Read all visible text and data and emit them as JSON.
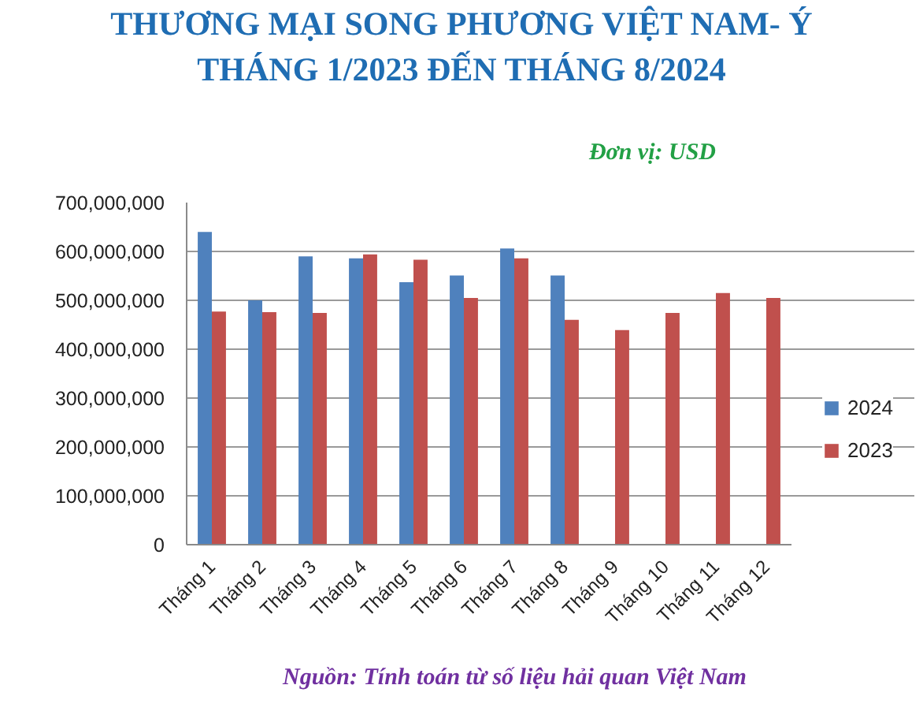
{
  "chart_data": {
    "type": "bar",
    "title": "THƯƠNG MẠI SONG PHƯƠNG VIỆT NAM- Ý",
    "subtitle": "THÁNG 1/2023 ĐẾN THÁNG 8/2024",
    "annotations": [
      "Đơn vị: USD",
      "Nguồn: Tính toán từ số liệu hải quan Việt Nam"
    ],
    "categories": [
      "Tháng 1",
      "Tháng 2",
      "Tháng 3",
      "Tháng 4",
      "Tháng 5",
      "Tháng 6",
      "Tháng 7",
      "Tháng 8",
      "Tháng 9",
      "Tháng 10",
      "Tháng 11",
      "Tháng 12"
    ],
    "series": [
      {
        "name": "2024",
        "color": "#4f81bd",
        "values": [
          640000000,
          500000000,
          590000000,
          586000000,
          537000000,
          551000000,
          606000000,
          551000000,
          null,
          null,
          null,
          null
        ]
      },
      {
        "name": "2023",
        "color": "#c0504d",
        "values": [
          477000000,
          476000000,
          474000000,
          594000000,
          583000000,
          505000000,
          586000000,
          460000000,
          439000000,
          474000000,
          515000000,
          505000000
        ]
      }
    ],
    "ylim": [
      0,
      700000000
    ],
    "yticks": [
      {
        "value": 0,
        "label": "0"
      },
      {
        "value": 100000000,
        "label": "100,000,000"
      },
      {
        "value": 200000000,
        "label": "200,000,000"
      },
      {
        "value": 300000000,
        "label": "300,000,000"
      },
      {
        "value": 400000000,
        "label": "400,000,000"
      },
      {
        "value": 500000000,
        "label": "500,000,000"
      },
      {
        "value": 600000000,
        "label": "600,000,000"
      },
      {
        "value": 700000000,
        "label": "700,000,000"
      }
    ],
    "grid": "y",
    "legend": "right"
  }
}
